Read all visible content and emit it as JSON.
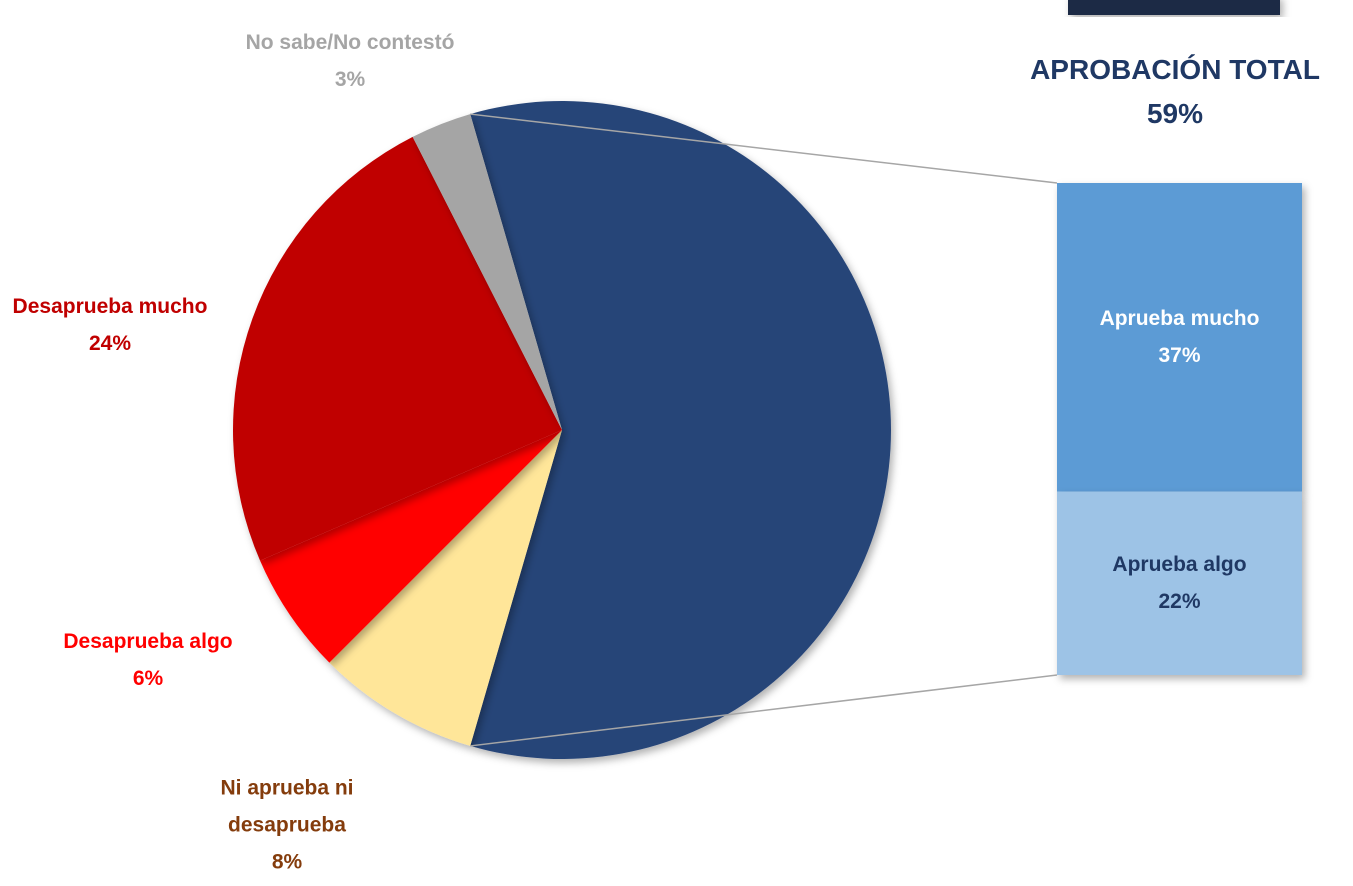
{
  "chart_data": {
    "type": "pie",
    "categories": [
      "APROBACIÓN TOTAL",
      "Ni aprueba ni desaprueba",
      "Desaprueba algo",
      "Desaprueba mucho",
      "No sabe/No contestó"
    ],
    "values": [
      59,
      8,
      6,
      24,
      3
    ],
    "value_labels": [
      "59%",
      "8%",
      "6%",
      "24%",
      "3%"
    ],
    "colors": [
      "#264478",
      "#ffe699",
      "#ff0000",
      "#c00000",
      "#a5a5a5"
    ],
    "label_colors": [
      "#1f3864",
      "#843c0c",
      "#ff0000",
      "#c00000",
      "#a5a5a5"
    ],
    "breakout": {
      "categories": [
        "Aprueba mucho",
        "Aprueba algo"
      ],
      "values": [
        37,
        22
      ],
      "value_labels": [
        "37%",
        "22%"
      ],
      "colors": [
        "#5b9bd5",
        "#9dc3e6"
      ],
      "label_colors": [
        "#ffffff",
        "#1f3864"
      ]
    }
  }
}
